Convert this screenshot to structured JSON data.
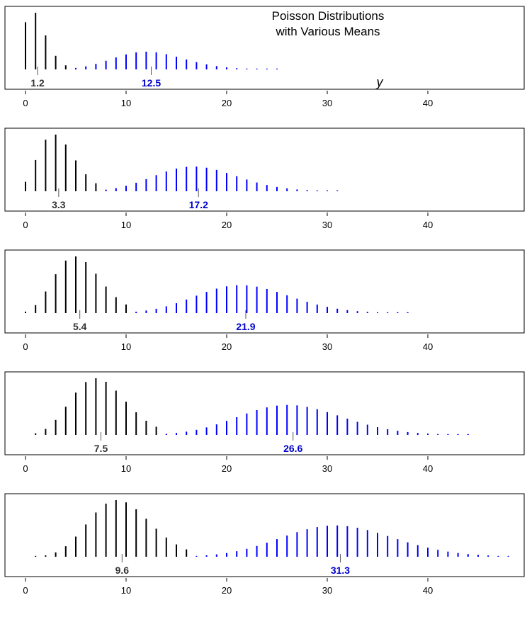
{
  "chart_data": {
    "type": "bar",
    "title_lines": [
      "Poisson Distributions",
      "with Various Means"
    ],
    "axis_letter": "y",
    "xlim": [
      -2,
      49
    ],
    "x_ticks": [
      0,
      10,
      20,
      30,
      40
    ],
    "colors": {
      "left": "#000000",
      "right": "#0000ff",
      "mean_left": "#555555",
      "right_label": "#0000cc"
    },
    "panels": [
      {
        "mean_left": 1.2,
        "mean_right": 12.5,
        "left_label": "1.2",
        "right_label": "12.5",
        "left_range": [
          0,
          5
        ],
        "right_range": [
          5,
          25
        ]
      },
      {
        "mean_left": 3.3,
        "mean_right": 17.2,
        "left_label": "3.3",
        "right_label": "17.2",
        "left_range": [
          0,
          7
        ],
        "right_range": [
          8,
          31
        ]
      },
      {
        "mean_left": 5.4,
        "mean_right": 21.9,
        "left_label": "5.4",
        "right_label": "21.9",
        "left_range": [
          0,
          10
        ],
        "right_range": [
          11,
          38
        ]
      },
      {
        "mean_left": 7.5,
        "mean_right": 26.6,
        "left_label": "7.5",
        "right_label": "26.6",
        "left_range": [
          1,
          13
        ],
        "right_range": [
          14,
          44
        ]
      },
      {
        "mean_left": 9.6,
        "mean_right": 31.3,
        "left_label": "9.6",
        "right_label": "31.3",
        "left_range": [
          1,
          16
        ],
        "right_range": [
          17,
          48
        ]
      }
    ]
  }
}
